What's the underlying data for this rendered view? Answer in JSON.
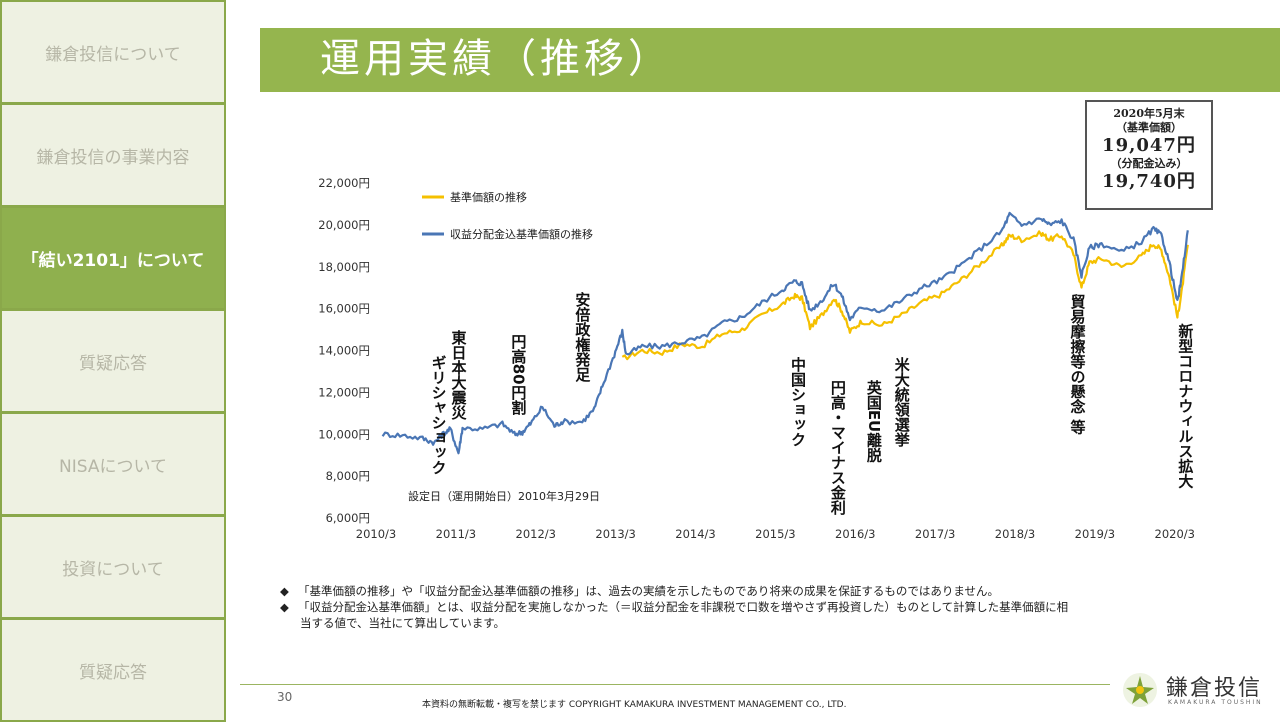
{
  "sidebar": {
    "items": [
      {
        "label": "鎌倉投信について",
        "active": false
      },
      {
        "label": "鎌倉投信の事業内容",
        "active": false
      },
      {
        "label": "「結い2101」について",
        "active": true
      },
      {
        "label": "質疑応答",
        "active": false
      },
      {
        "label": "NISAについて",
        "active": false
      },
      {
        "label": "投資について",
        "active": false
      },
      {
        "label": "質疑応答",
        "active": false
      }
    ]
  },
  "title": "運用実績（推移）",
  "info_box": {
    "date": "2020年5月末",
    "nav_label": "（基準価額）",
    "nav_value": "19,047円",
    "dist_label": "（分配金込み）",
    "dist_value": "19,740円"
  },
  "chart_data": {
    "type": "line",
    "x_ticks": [
      "2010/3",
      "2011/3",
      "2012/3",
      "2013/3",
      "2014/3",
      "2015/3",
      "2016/3",
      "2017/3",
      "2018/3",
      "2019/3",
      "2020/3"
    ],
    "y_ticks": [
      "6,000円",
      "8,000円",
      "10,000円",
      "12,000円",
      "14,000円",
      "16,000円",
      "18,000円",
      "20,000円",
      "22,000円"
    ],
    "ylim": [
      6000,
      22000
    ],
    "xlim": [
      2010.167,
      2020.333
    ],
    "legend_position": "top-left",
    "inception_note": "設定日（運用開始日）2010年3月29日",
    "series": [
      {
        "name": "基準価額の推移",
        "color": "#f5c000",
        "points": [
          [
            2013.25,
            13600
          ],
          [
            2013.5,
            14000
          ],
          [
            2013.75,
            13900
          ],
          [
            2014.0,
            14300
          ],
          [
            2014.25,
            14200
          ],
          [
            2014.5,
            14800
          ],
          [
            2014.75,
            15000
          ],
          [
            2015.0,
            15700
          ],
          [
            2015.25,
            16200
          ],
          [
            2015.4,
            16600
          ],
          [
            2015.5,
            16500
          ],
          [
            2015.6,
            15100
          ],
          [
            2015.75,
            15700
          ],
          [
            2015.9,
            16500
          ],
          [
            2016.0,
            15900
          ],
          [
            2016.1,
            14900
          ],
          [
            2016.25,
            15400
          ],
          [
            2016.5,
            15200
          ],
          [
            2016.75,
            15700
          ],
          [
            2017.0,
            16300
          ],
          [
            2017.25,
            16700
          ],
          [
            2017.5,
            17400
          ],
          [
            2017.75,
            18200
          ],
          [
            2018.0,
            19000
          ],
          [
            2018.1,
            19500
          ],
          [
            2018.25,
            19300
          ],
          [
            2018.5,
            19600
          ],
          [
            2018.6,
            19300
          ],
          [
            2018.75,
            19500
          ],
          [
            2018.9,
            18600
          ],
          [
            2019.0,
            17000
          ],
          [
            2019.1,
            18200
          ],
          [
            2019.25,
            18400
          ],
          [
            2019.5,
            18000
          ],
          [
            2019.75,
            18500
          ],
          [
            2019.9,
            19100
          ],
          [
            2020.0,
            18800
          ],
          [
            2020.1,
            17500
          ],
          [
            2020.2,
            15600
          ],
          [
            2020.25,
            16700
          ],
          [
            2020.33,
            19047
          ]
        ]
      },
      {
        "name": "収益分配金込基準価額の推移",
        "color": "#4a76b5",
        "points": [
          [
            2010.25,
            10000
          ],
          [
            2010.5,
            9950
          ],
          [
            2010.75,
            9800
          ],
          [
            2010.9,
            9600
          ],
          [
            2011.0,
            10000
          ],
          [
            2011.1,
            10250
          ],
          [
            2011.2,
            9100
          ],
          [
            2011.25,
            10300
          ],
          [
            2011.5,
            10250
          ],
          [
            2011.75,
            10500
          ],
          [
            2011.9,
            10000
          ],
          [
            2012.0,
            10100
          ],
          [
            2012.1,
            10500
          ],
          [
            2012.25,
            11300
          ],
          [
            2012.4,
            10400
          ],
          [
            2012.5,
            10600
          ],
          [
            2012.75,
            10600
          ],
          [
            2012.9,
            11200
          ],
          [
            2013.0,
            12300
          ],
          [
            2013.15,
            13800
          ],
          [
            2013.25,
            14900
          ],
          [
            2013.3,
            13800
          ],
          [
            2013.5,
            14200
          ],
          [
            2013.75,
            14200
          ],
          [
            2014.0,
            14400
          ],
          [
            2014.25,
            14600
          ],
          [
            2014.5,
            15300
          ],
          [
            2014.75,
            15600
          ],
          [
            2015.0,
            16300
          ],
          [
            2015.25,
            16900
          ],
          [
            2015.4,
            17300
          ],
          [
            2015.5,
            17200
          ],
          [
            2015.6,
            15900
          ],
          [
            2015.75,
            16400
          ],
          [
            2015.9,
            17200
          ],
          [
            2016.0,
            16600
          ],
          [
            2016.1,
            15500
          ],
          [
            2016.25,
            16100
          ],
          [
            2016.5,
            15900
          ],
          [
            2016.75,
            16400
          ],
          [
            2017.0,
            17000
          ],
          [
            2017.25,
            17400
          ],
          [
            2017.5,
            18100
          ],
          [
            2017.75,
            18900
          ],
          [
            2018.0,
            19700
          ],
          [
            2018.1,
            20500
          ],
          [
            2018.25,
            20000
          ],
          [
            2018.5,
            20300
          ],
          [
            2018.6,
            20000
          ],
          [
            2018.75,
            20200
          ],
          [
            2018.9,
            19300
          ],
          [
            2019.0,
            17600
          ],
          [
            2019.1,
            18900
          ],
          [
            2019.25,
            19100
          ],
          [
            2019.5,
            18700
          ],
          [
            2019.75,
            19200
          ],
          [
            2019.9,
            19800
          ],
          [
            2020.0,
            19500
          ],
          [
            2020.1,
            18200
          ],
          [
            2020.2,
            16300
          ],
          [
            2020.25,
            17400
          ],
          [
            2020.33,
            19740
          ]
        ]
      }
    ],
    "annotations": [
      {
        "text": "ギリシャショック",
        "x": 2010.95,
        "y": 13800
      },
      {
        "text": "東日本大震災",
        "x": 2011.2,
        "y": 15000
      },
      {
        "text": "円高80円割",
        "x": 2011.95,
        "y": 14800
      },
      {
        "text": "安倍政権発足",
        "x": 2012.75,
        "y": 16800
      },
      {
        "text": "中国ショック",
        "x": 2015.45,
        "y": 13700
      },
      {
        "text": "円高・マイナス金利",
        "x": 2015.95,
        "y": 12600
      },
      {
        "text": "英国EU離脱",
        "x": 2016.4,
        "y": 12600
      },
      {
        "text": "米大統領選挙",
        "x": 2016.75,
        "y": 13700
      },
      {
        "text": "貿易摩擦等の懸念 等",
        "x": 2018.95,
        "y": 16700
      },
      {
        "text": "新型コロナウィルス拡大",
        "x": 2020.3,
        "y": 15300
      }
    ]
  },
  "notes": [
    "「基準価額の推移」や「収益分配金込基準価額の推移」は、過去の実績を示したものであり将来の成果を保証するものではありません。",
    "「収益分配金込基準価額」とは、収益分配を実施しなかった（＝収益分配金を非課税で口数を増やさず再投資した）ものとして計算した基準価額に相",
    "当する値で、当社にて算出しています。"
  ],
  "note_bullet": "◆",
  "footer": {
    "page_number": "30",
    "copyright": "本資料の無断転載・複写を禁じます COPYRIGHT KAMAKURA INVESTMENT MANAGEMENT CO., LTD."
  },
  "logo": {
    "text": "鎌倉投信",
    "sub": "KAMAKURA TOUSHIN"
  }
}
